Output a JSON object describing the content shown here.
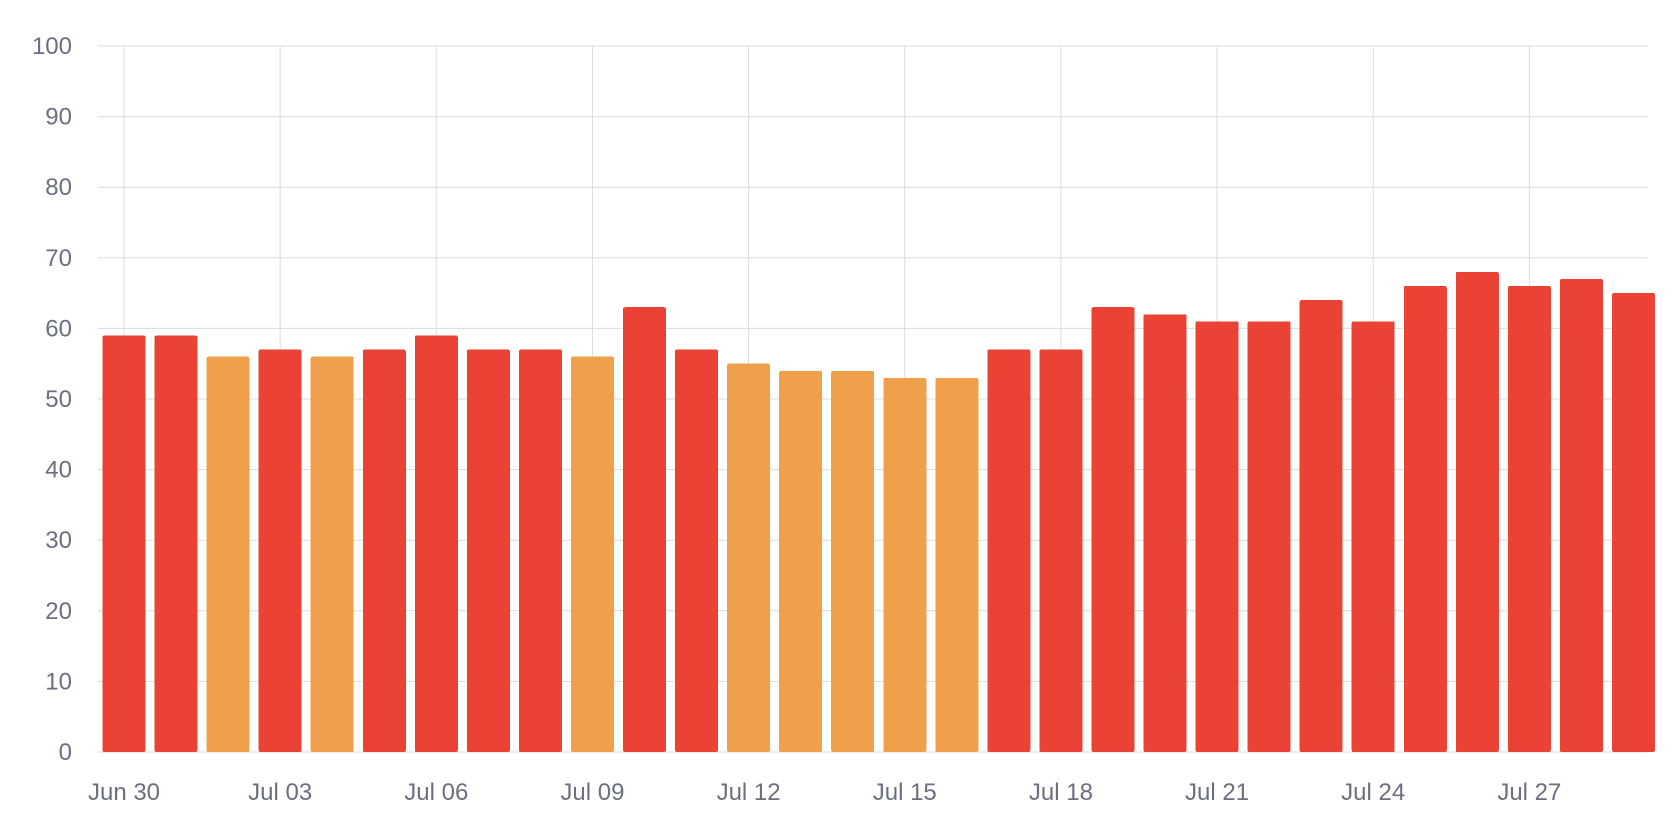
{
  "chart_data": {
    "type": "bar",
    "title": "",
    "xlabel": "",
    "ylabel": "",
    "ylim": [
      0,
      100
    ],
    "y_ticks": [
      "0",
      "10",
      "20",
      "30",
      "40",
      "50",
      "60",
      "70",
      "80",
      "90",
      "100"
    ],
    "x_tick_labels": [
      "Jun 30",
      "Jul 03",
      "Jul 06",
      "Jul 09",
      "Jul 12",
      "Jul 15",
      "Jul 18",
      "Jul 21",
      "Jul 24",
      "Jul 27"
    ],
    "categories": [
      "Jun 30",
      "Jul 01",
      "Jul 02",
      "Jul 03",
      "Jul 04",
      "Jul 05",
      "Jul 06",
      "Jul 07",
      "Jul 08",
      "Jul 09",
      "Jul 10",
      "Jul 11",
      "Jul 12",
      "Jul 13",
      "Jul 14",
      "Jul 15",
      "Jul 16",
      "Jul 17",
      "Jul 18",
      "Jul 19",
      "Jul 20",
      "Jul 21",
      "Jul 22",
      "Jul 23",
      "Jul 24",
      "Jul 25",
      "Jul 26",
      "Jul 27",
      "Jul 28",
      "Jul 29"
    ],
    "values": [
      59,
      59,
      56,
      57,
      56,
      57,
      59,
      57,
      57,
      56,
      63,
      57,
      55,
      54,
      54,
      53,
      53,
      57,
      57,
      63,
      62,
      61,
      61,
      64,
      61,
      66,
      68,
      66,
      67,
      65
    ],
    "bar_colors": [
      "#ea4335",
      "#ea4335",
      "#f0a04b",
      "#ea4335",
      "#f0a04b",
      "#ea4335",
      "#ea4335",
      "#ea4335",
      "#ea4335",
      "#f0a04b",
      "#ea4335",
      "#ea4335",
      "#f0a04b",
      "#f0a04b",
      "#f0a04b",
      "#f0a04b",
      "#f0a04b",
      "#ea4335",
      "#ea4335",
      "#ea4335",
      "#ea4335",
      "#ea4335",
      "#ea4335",
      "#ea4335",
      "#ea4335",
      "#ea4335",
      "#ea4335",
      "#ea4335",
      "#ea4335",
      "#ea4335"
    ],
    "grid": true,
    "legend": "none",
    "colors": {
      "high": "#ea4335",
      "moderate": "#f0a04b",
      "grid": "#dcdcdc",
      "tick_text": "#6b6f80"
    }
  }
}
